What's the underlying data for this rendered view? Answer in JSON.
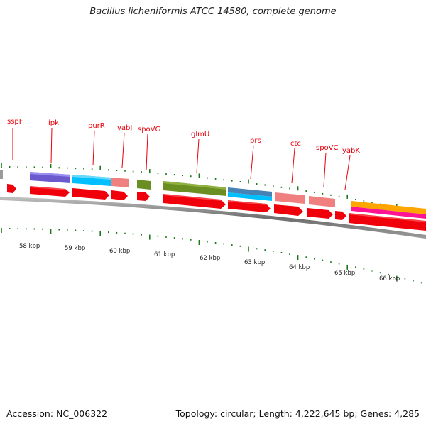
{
  "title": "Bacillus licheniformis ATCC 14580, complete genome",
  "footer": {
    "accession": "Accession: NC_006322",
    "summary": "Topology: circular; Length: 4,222,645 bp; Genes: 4,285"
  },
  "colors": {
    "cds": "#f0000a",
    "backbone": "#7a7a7a",
    "tick": "#1a7a1a",
    "label": "#e8000b"
  },
  "gene_labels": [
    "sspF",
    "ipk",
    "purR",
    "yabJ",
    "spoVG",
    "glmU",
    "prs",
    "ctc",
    "spoVC",
    "yabK"
  ],
  "scale_labels": [
    "58 kbp",
    "59 kbp",
    "60 kbp",
    "61 kbp",
    "62 kbp",
    "63 kbp",
    "64 kbp",
    "65 kbp",
    "66 kbp"
  ],
  "cog_colors": [
    "#6a5acd",
    "#00bfff",
    "#f08080",
    "#6b8e23",
    "#4682b4",
    "#ffa500",
    "#ff1493"
  ]
}
